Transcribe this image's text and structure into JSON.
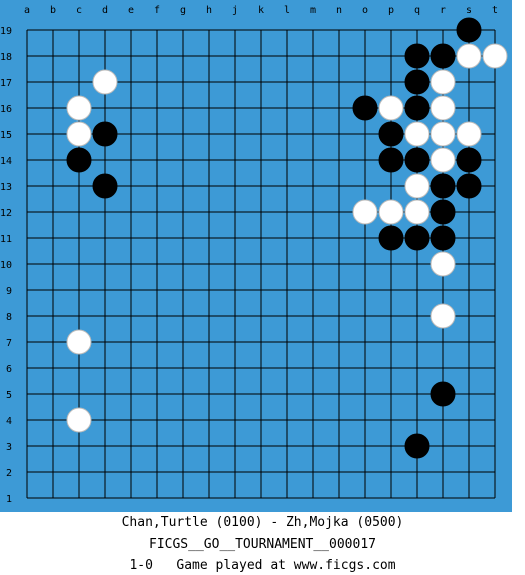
{
  "board": {
    "columns": [
      "a",
      "b",
      "c",
      "d",
      "e",
      "f",
      "g",
      "h",
      "j",
      "k",
      "l",
      "m",
      "n",
      "o",
      "p",
      "q",
      "r",
      "s",
      "t"
    ],
    "rows": [
      19,
      18,
      17,
      16,
      15,
      14,
      13,
      12,
      11,
      10,
      9,
      8,
      7,
      6,
      5,
      4,
      3,
      2,
      1
    ],
    "stones": [
      {
        "color": "black",
        "x": "s",
        "y": 19
      },
      {
        "color": "black",
        "x": "q",
        "y": 18
      },
      {
        "color": "black",
        "x": "r",
        "y": 18
      },
      {
        "color": "white",
        "x": "s",
        "y": 18
      },
      {
        "color": "white",
        "x": "t",
        "y": 18
      },
      {
        "color": "white",
        "x": "d",
        "y": 17
      },
      {
        "color": "black",
        "x": "q",
        "y": 17
      },
      {
        "color": "white",
        "x": "r",
        "y": 17
      },
      {
        "color": "white",
        "x": "c",
        "y": 16
      },
      {
        "color": "black",
        "x": "o",
        "y": 16
      },
      {
        "color": "white",
        "x": "p",
        "y": 16
      },
      {
        "color": "black",
        "x": "q",
        "y": 16
      },
      {
        "color": "white",
        "x": "r",
        "y": 16
      },
      {
        "color": "white",
        "x": "c",
        "y": 15
      },
      {
        "color": "black",
        "x": "d",
        "y": 15
      },
      {
        "color": "black",
        "x": "p",
        "y": 15
      },
      {
        "color": "white",
        "x": "q",
        "y": 15
      },
      {
        "color": "white",
        "x": "r",
        "y": 15
      },
      {
        "color": "white",
        "x": "s",
        "y": 15
      },
      {
        "color": "black",
        "x": "c",
        "y": 14
      },
      {
        "color": "black",
        "x": "p",
        "y": 14
      },
      {
        "color": "black",
        "x": "q",
        "y": 14
      },
      {
        "color": "white",
        "x": "r",
        "y": 14
      },
      {
        "color": "black",
        "x": "s",
        "y": 14
      },
      {
        "color": "black",
        "x": "d",
        "y": 13
      },
      {
        "color": "white",
        "x": "q",
        "y": 13
      },
      {
        "color": "black",
        "x": "r",
        "y": 13
      },
      {
        "color": "black",
        "x": "s",
        "y": 13
      },
      {
        "color": "white",
        "x": "o",
        "y": 12
      },
      {
        "color": "white",
        "x": "p",
        "y": 12
      },
      {
        "color": "white",
        "x": "q",
        "y": 12
      },
      {
        "color": "black",
        "x": "r",
        "y": 12
      },
      {
        "color": "black",
        "x": "p",
        "y": 11
      },
      {
        "color": "black",
        "x": "q",
        "y": 11
      },
      {
        "color": "black",
        "x": "r",
        "y": 11
      },
      {
        "color": "white",
        "x": "r",
        "y": 10
      },
      {
        "color": "white",
        "x": "r",
        "y": 8
      },
      {
        "color": "white",
        "x": "c",
        "y": 7
      },
      {
        "color": "black",
        "x": "r",
        "y": 5
      },
      {
        "color": "white",
        "x": "c",
        "y": 4
      },
      {
        "color": "black",
        "x": "q",
        "y": 3
      }
    ]
  },
  "footer": {
    "players": "Chan,Turtle (0100) - Zh,Mojka (0500)",
    "event": "FICGS__GO__TOURNAMENT__000017",
    "result": "1-0   Game played at www.ficgs.com"
  }
}
